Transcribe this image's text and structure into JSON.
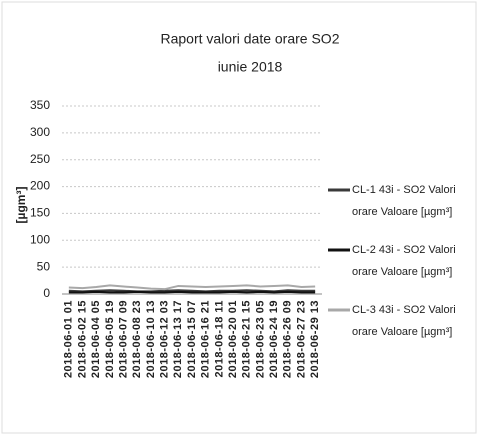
{
  "chart_data": {
    "type": "line",
    "title": "Raport valori date orare SO2",
    "subtitle": "iunie 2018",
    "y_label": "[µgm³]",
    "categories": [
      "2018-06-01 01",
      "2018-06-02 15",
      "2018-06-04 05",
      "2018-06-05 19",
      "2018-06-07 09",
      "2018-06-08 23",
      "2018-06-10 13",
      "2018-06-12 03",
      "2018-06-13 17",
      "2018-06-15 07",
      "2018-06-16 21",
      "2018-06-18 11",
      "2018-06-20 01",
      "2018-06-21 15",
      "2018-06-23 05",
      "2018-06-24 19",
      "2018-06-26 09",
      "2018-06-27 23",
      "2018-06-29 13"
    ],
    "series": [
      {
        "name": "CL-1 43i - SO2 Valori orare Valoare [µgm³]",
        "color": "#3a3a3a",
        "values": [
          6,
          5,
          6,
          7,
          6,
          5,
          5,
          6,
          7,
          6,
          5,
          6,
          6,
          7,
          6,
          5,
          7,
          6,
          6
        ]
      },
      {
        "name": "CL-2 43i - SO2 Valori orare Valoare [µgm³]",
        "color": "#111111",
        "values": [
          3,
          3,
          4,
          3,
          3,
          4,
          3,
          3,
          4,
          3,
          3,
          3,
          4,
          3,
          4,
          3,
          4,
          3,
          3
        ]
      },
      {
        "name": "CL-3 43i - SO2 Valori orare Valoare [µgm³]",
        "color": "#a8a8a8",
        "values": [
          12,
          11,
          13,
          16,
          14,
          12,
          10,
          9,
          15,
          14,
          13,
          14,
          15,
          16,
          14,
          15,
          16,
          13,
          14
        ]
      }
    ],
    "ylim": [
      0,
      350
    ],
    "yticks": [
      0,
      50,
      100,
      150,
      200,
      250,
      300,
      350
    ],
    "grid": true
  }
}
